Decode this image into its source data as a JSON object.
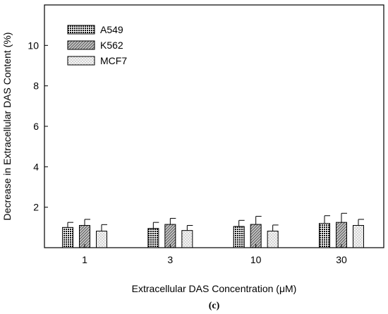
{
  "chart_data": {
    "type": "bar",
    "panel_label": "(c)",
    "categories": [
      "1",
      "3",
      "10",
      "30"
    ],
    "xlabel": "Extracellular DAS Concentration (μM)",
    "ylabel": "Decrease in Extracellular DAS Content (%)",
    "ylim": [
      0,
      12
    ],
    "yticks": [
      2,
      4,
      6,
      8,
      10
    ],
    "grid": false,
    "legend_position": "top-left",
    "series": [
      {
        "name": "A549",
        "pattern": "dense-dark-dots",
        "values": [
          1.0,
          0.95,
          1.05,
          1.2
        ],
        "errors": [
          0.25,
          0.3,
          0.3,
          0.38
        ]
      },
      {
        "name": "K562",
        "pattern": "diagonal-hatch-gray",
        "values": [
          1.1,
          1.15,
          1.15,
          1.25
        ],
        "errors": [
          0.3,
          0.3,
          0.4,
          0.45
        ]
      },
      {
        "name": "MCF7",
        "pattern": "sparse-light-dots",
        "values": [
          0.82,
          0.85,
          0.82,
          1.1
        ],
        "errors": [
          0.32,
          0.25,
          0.3,
          0.3
        ]
      }
    ]
  }
}
